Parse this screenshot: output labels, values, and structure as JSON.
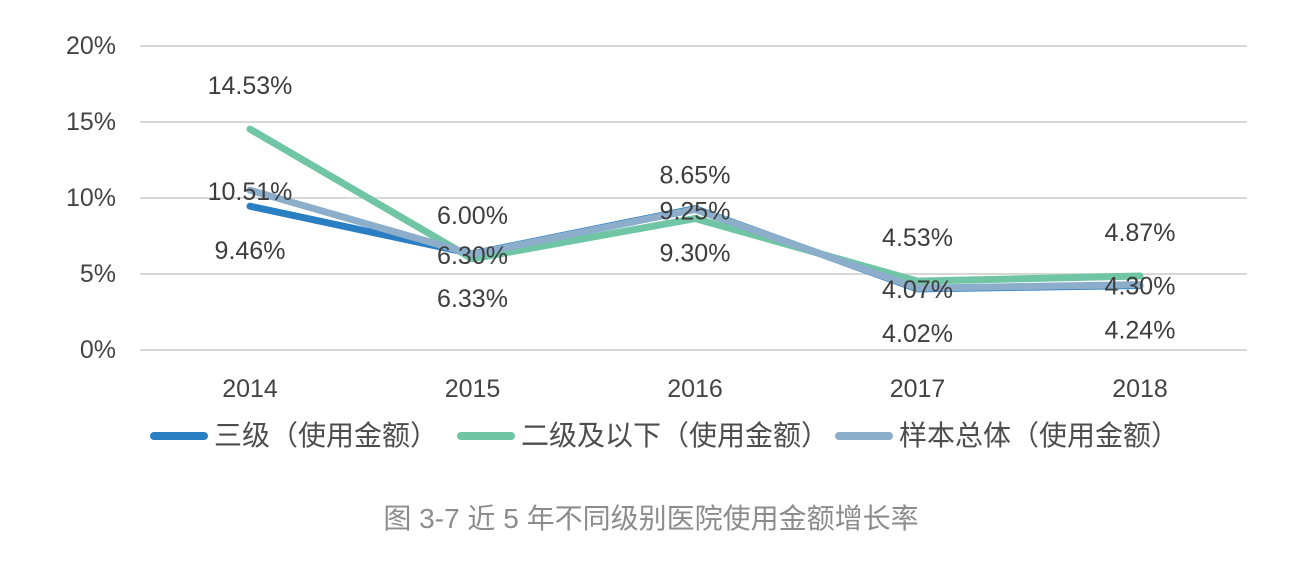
{
  "figure": {
    "caption": "图 3-7 近 5 年不同级别医院使用金额增长率"
  },
  "chart_data": {
    "type": "line",
    "title": "图 3-7 近 5 年不同级别医院使用金额增长率",
    "categories": [
      "2014",
      "2015",
      "2016",
      "2017",
      "2018"
    ],
    "series": [
      {
        "name": "三级（使用金额）",
        "color": "#2A7EC2",
        "values": [
          9.46,
          6.33,
          9.3,
          4.02,
          4.24
        ],
        "label_position": "below"
      },
      {
        "name": "二级及以下（使用金额）",
        "color": "#6FC5A4",
        "values": [
          14.53,
          6.0,
          8.65,
          4.53,
          4.87
        ],
        "label_position": "above"
      },
      {
        "name": "样本总体（使用金额）",
        "color": "#8CAECB",
        "values": [
          10.51,
          6.3,
          9.25,
          4.07,
          4.3
        ],
        "label_position": "on"
      }
    ],
    "y_axis": {
      "tick_values": [
        0,
        5,
        10,
        15,
        20
      ],
      "tick_labels": [
        "0%",
        "5%",
        "10%",
        "15%",
        "20%"
      ],
      "range": [
        0,
        20
      ]
    },
    "data_labels": true,
    "data_label_format": "two-decimal-percent",
    "grid": true,
    "legend_position": "bottom"
  },
  "colors": {
    "background": "#FFFFFF",
    "grid": "#D8D8D8",
    "axis_text": "#444444",
    "data_label_text": "#3D3D3D",
    "legend_text": "#4D4D4D",
    "caption_text": "#8C8C8C"
  }
}
